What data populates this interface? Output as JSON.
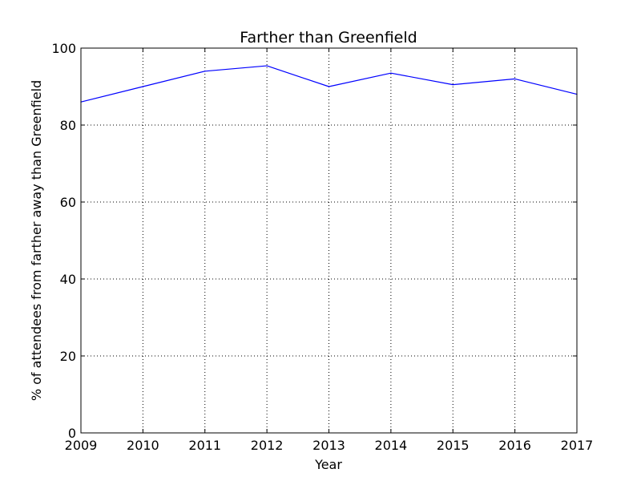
{
  "chart_data": {
    "type": "line",
    "title": "Farther than Greenfield",
    "xlabel": "Year",
    "ylabel": "% of attendees from farther away than Greenfield",
    "x": [
      2009,
      2010,
      2011,
      2012,
      2013,
      2014,
      2015,
      2016,
      2017
    ],
    "xlim": [
      2009,
      2017
    ],
    "ylim": [
      0,
      100
    ],
    "xticks": [
      "2009",
      "2010",
      "2011",
      "2012",
      "2013",
      "2014",
      "2015",
      "2016",
      "2017"
    ],
    "yticks": [
      "0",
      "20",
      "40",
      "60",
      "80",
      "100"
    ],
    "grid": true,
    "series": [
      {
        "values": [
          86,
          90,
          94,
          95.4,
          90,
          93.5,
          90.5,
          92,
          88
        ],
        "color": "#0000ff"
      }
    ]
  }
}
